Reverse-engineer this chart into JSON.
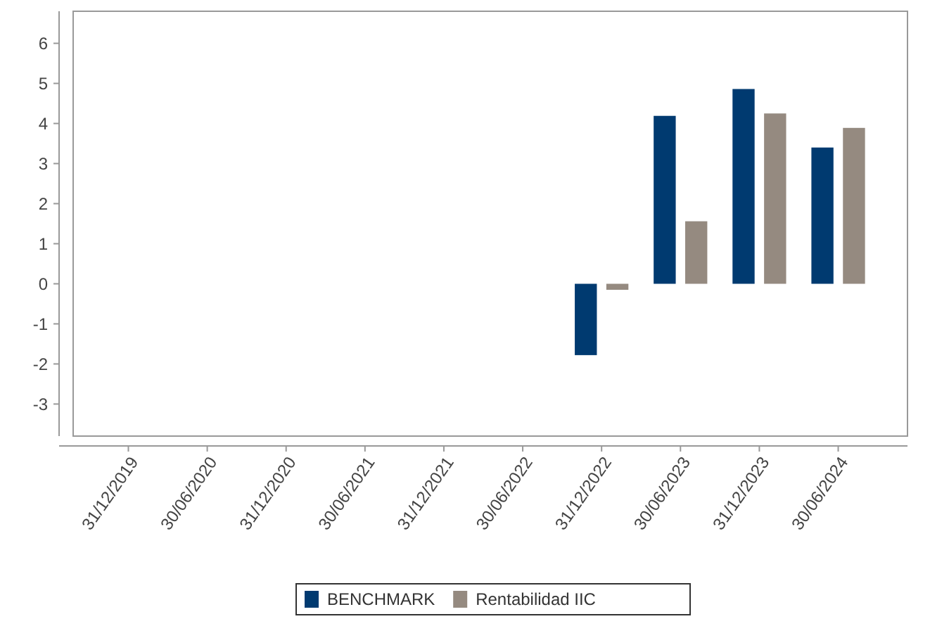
{
  "chart_data": {
    "type": "bar",
    "categories": [
      "31/12/2019",
      "30/06/2020",
      "31/12/2020",
      "30/06/2021",
      "31/12/2021",
      "30/06/2022",
      "31/12/2022",
      "30/06/2023",
      "31/12/2023",
      "30/06/2024"
    ],
    "series": [
      {
        "name": "BENCHMARK",
        "color": "#003a70",
        "values": [
          null,
          null,
          null,
          null,
          null,
          null,
          -1.78,
          4.19,
          4.86,
          3.4
        ]
      },
      {
        "name": "Rentabilidad IIC",
        "color": "#958a80",
        "values": [
          null,
          null,
          null,
          null,
          null,
          null,
          -0.15,
          1.56,
          4.25,
          3.89
        ]
      }
    ],
    "ylim": [
      -3.8,
      6.8
    ],
    "yticks": [
      -3,
      -2,
      -1,
      0,
      1,
      2,
      3,
      4,
      5,
      6
    ],
    "grid": false,
    "legend": "bottom"
  }
}
